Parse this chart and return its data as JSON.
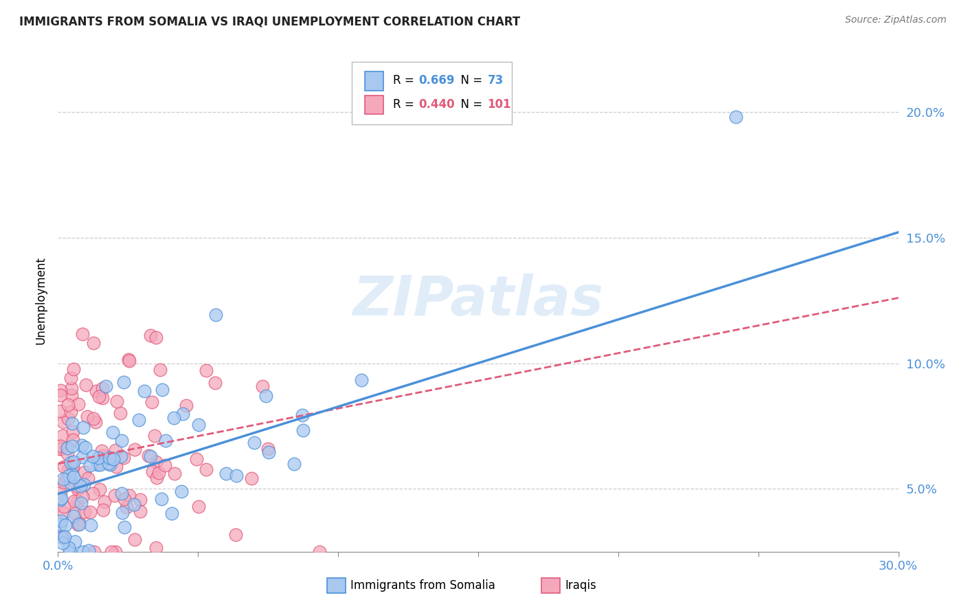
{
  "title": "IMMIGRANTS FROM SOMALIA VS IRAQI UNEMPLOYMENT CORRELATION CHART",
  "source": "Source: ZipAtlas.com",
  "ylabel": "Unemployment",
  "ytick_labels": [
    "5.0%",
    "10.0%",
    "15.0%",
    "20.0%"
  ],
  "ytick_values": [
    0.05,
    0.1,
    0.15,
    0.2
  ],
  "xlim": [
    0.0,
    0.3
  ],
  "ylim": [
    0.025,
    0.225
  ],
  "blue_R": 0.669,
  "blue_N": 73,
  "pink_R": 0.44,
  "pink_N": 101,
  "blue_color": "#A8C8F0",
  "pink_color": "#F5A8BC",
  "blue_line_color": "#4A90D9",
  "pink_line_color": "#E05A7A",
  "blue_edge_color": "#4A90D9",
  "pink_edge_color": "#E05A7A",
  "legend_label_blue": "Immigrants from Somalia",
  "legend_label_pink": "Iraqis",
  "watermark": "ZIPatlas",
  "title_fontsize": 12,
  "source_fontsize": 10,
  "tick_color": "#4A90D9",
  "grid_color": "#cccccc",
  "xtick_positions": [
    0.0,
    0.05,
    0.1,
    0.15,
    0.2,
    0.25,
    0.3
  ],
  "xtick_labels": [
    "0.0%",
    "",
    "",
    "",
    "",
    "",
    "30.0%"
  ]
}
